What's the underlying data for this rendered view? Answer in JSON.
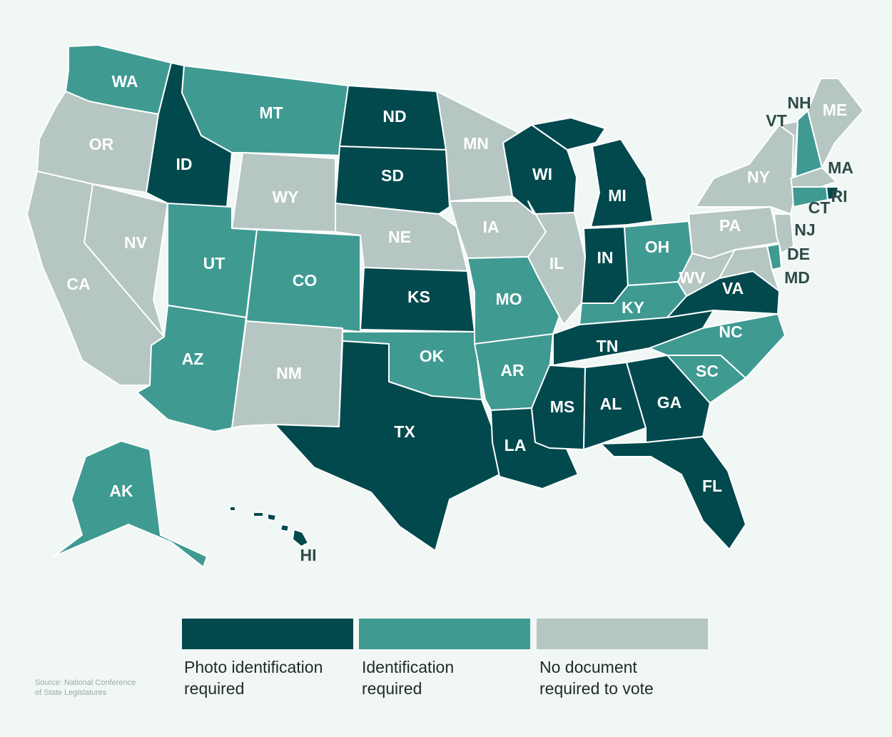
{
  "colors": {
    "photo": "#02494d",
    "id": "#3f9a92",
    "none": "#b6c6c3",
    "background": "#f1f7f5",
    "border": "#ffffff"
  },
  "states": [
    {
      "abbr": "WA",
      "category": "id"
    },
    {
      "abbr": "OR",
      "category": "none"
    },
    {
      "abbr": "CA",
      "category": "none"
    },
    {
      "abbr": "NV",
      "category": "none"
    },
    {
      "abbr": "ID",
      "category": "photo"
    },
    {
      "abbr": "MT",
      "category": "id"
    },
    {
      "abbr": "WY",
      "category": "none"
    },
    {
      "abbr": "UT",
      "category": "id"
    },
    {
      "abbr": "AZ",
      "category": "id"
    },
    {
      "abbr": "CO",
      "category": "id"
    },
    {
      "abbr": "NM",
      "category": "none"
    },
    {
      "abbr": "ND",
      "category": "photo"
    },
    {
      "abbr": "SD",
      "category": "photo"
    },
    {
      "abbr": "NE",
      "category": "none"
    },
    {
      "abbr": "KS",
      "category": "photo"
    },
    {
      "abbr": "OK",
      "category": "id"
    },
    {
      "abbr": "TX",
      "category": "photo"
    },
    {
      "abbr": "MN",
      "category": "none"
    },
    {
      "abbr": "IA",
      "category": "none"
    },
    {
      "abbr": "MO",
      "category": "id"
    },
    {
      "abbr": "AR",
      "category": "id"
    },
    {
      "abbr": "LA",
      "category": "photo"
    },
    {
      "abbr": "WI",
      "category": "photo"
    },
    {
      "abbr": "IL",
      "category": "none"
    },
    {
      "abbr": "MI",
      "category": "photo"
    },
    {
      "abbr": "IN",
      "category": "photo"
    },
    {
      "abbr": "OH",
      "category": "id"
    },
    {
      "abbr": "KY",
      "category": "id"
    },
    {
      "abbr": "TN",
      "category": "photo"
    },
    {
      "abbr": "MS",
      "category": "photo"
    },
    {
      "abbr": "AL",
      "category": "photo"
    },
    {
      "abbr": "GA",
      "category": "photo"
    },
    {
      "abbr": "FL",
      "category": "photo"
    },
    {
      "abbr": "SC",
      "category": "id"
    },
    {
      "abbr": "NC",
      "category": "id"
    },
    {
      "abbr": "VA",
      "category": "photo"
    },
    {
      "abbr": "WV",
      "category": "none"
    },
    {
      "abbr": "PA",
      "category": "none"
    },
    {
      "abbr": "NY",
      "category": "none"
    },
    {
      "abbr": "VT",
      "category": "none"
    },
    {
      "abbr": "NH",
      "category": "id"
    },
    {
      "abbr": "ME",
      "category": "none"
    },
    {
      "abbr": "MA",
      "category": "none"
    },
    {
      "abbr": "RI",
      "category": "photo"
    },
    {
      "abbr": "CT",
      "category": "id"
    },
    {
      "abbr": "NJ",
      "category": "none"
    },
    {
      "abbr": "DE",
      "category": "id"
    },
    {
      "abbr": "MD",
      "category": "none"
    },
    {
      "abbr": "AK",
      "category": "id"
    },
    {
      "abbr": "HI",
      "category": "photo"
    }
  ],
  "legend": [
    {
      "category": "photo",
      "label": "Photo identification\nrequired"
    },
    {
      "category": "id",
      "label": "Identification\nrequired"
    },
    {
      "category": "none",
      "label": "No document\nrequired to vote"
    }
  ],
  "source": "Source: National Conference\nof State Legislatures"
}
